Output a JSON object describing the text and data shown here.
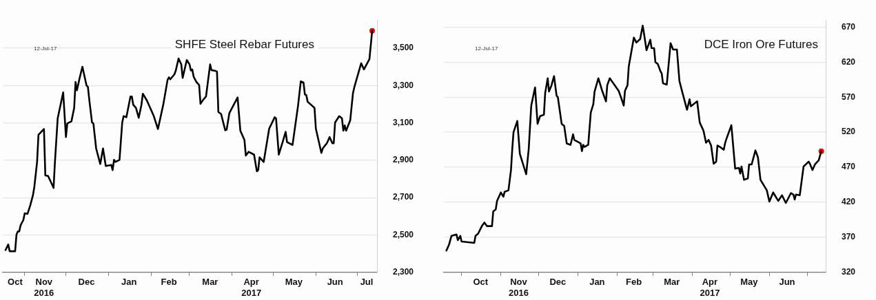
{
  "chart_data": [
    {
      "type": "line",
      "title": "SHFE Steel Rebar Futures",
      "annotations": [
        "12-Jul-17"
      ],
      "grid": "y",
      "marker": "none",
      "line_style": "solid",
      "xlim": [
        "2016-10-16",
        "2017-07-16"
      ],
      "xticks": [
        {
          "value": "2016-10-25",
          "label": "Oct"
        },
        {
          "value": "2016-11-01",
          "label": null
        },
        {
          "value": "2016-11-15",
          "label": "Nov\n2016"
        },
        {
          "value": "2016-12-01",
          "label": null
        },
        {
          "value": "2016-12-16",
          "label": "Dec"
        },
        {
          "value": "2017-01-01",
          "label": null
        },
        {
          "value": "2017-01-16",
          "label": "Jan"
        },
        {
          "value": "2017-02-01",
          "label": null
        },
        {
          "value": "2017-02-14",
          "label": "Feb"
        },
        {
          "value": "2017-03-01",
          "label": null
        },
        {
          "value": "2017-03-16",
          "label": "Mar"
        },
        {
          "value": "2017-04-01",
          "label": null
        },
        {
          "value": "2017-04-15",
          "label": "Apr\n2017"
        },
        {
          "value": "2017-05-01",
          "label": null
        },
        {
          "value": "2017-05-16",
          "label": "May"
        },
        {
          "value": "2017-06-01",
          "label": null
        },
        {
          "value": "2017-06-15",
          "label": "Jun"
        },
        {
          "value": "2017-07-01",
          "label": null
        },
        {
          "value": "2017-07-08",
          "label": "Jul"
        }
      ],
      "ylim": [
        2300,
        3650
      ],
      "yticks": [
        {
          "value": 2300,
          "label": "2,300"
        },
        {
          "value": 2500,
          "label": "2,500"
        },
        {
          "value": 2700,
          "label": "2,700"
        },
        {
          "value": 2900,
          "label": "2,900"
        },
        {
          "value": 3100,
          "label": "3,100"
        },
        {
          "value": 3300,
          "label": "3,300"
        },
        {
          "value": 3500,
          "label": "3,500"
        }
      ],
      "series": [
        {
          "color": "#000000",
          "x": [
            "2016-10-18",
            "2016-10-20",
            "2016-10-21",
            "2016-10-25",
            "2016-10-26",
            "2016-10-27",
            "2016-10-28",
            "2016-10-29",
            "2016-10-31",
            "2016-11-01",
            "2016-11-03",
            "2016-11-05",
            "2016-11-07",
            "2016-11-08",
            "2016-11-10",
            "2016-11-11",
            "2016-11-15",
            "2016-11-16",
            "2016-11-18",
            "2016-11-22",
            "2016-11-23",
            "2016-11-25",
            "2016-11-29",
            "2016-12-01",
            "2016-12-02",
            "2016-12-05",
            "2016-12-07",
            "2016-12-08",
            "2016-12-09",
            "2016-12-11",
            "2016-12-13",
            "2016-12-16",
            "2016-12-17",
            "2016-12-18",
            "2016-12-20",
            "2016-12-21",
            "2016-12-23",
            "2016-12-26",
            "2016-12-28",
            "2016-12-30",
            "2017-01-03",
            "2017-01-04",
            "2017-01-05",
            "2017-01-06",
            "2017-01-09",
            "2017-01-11",
            "2017-01-12",
            "2017-01-14",
            "2017-01-17",
            "2017-01-18",
            "2017-01-19",
            "2017-01-21",
            "2017-01-23",
            "2017-01-25",
            "2017-01-26",
            "2017-01-29",
            "2017-02-03",
            "2017-02-06",
            "2017-02-10",
            "2017-02-13",
            "2017-02-14",
            "2017-02-15",
            "2017-02-18",
            "2017-02-19",
            "2017-02-21",
            "2017-02-23",
            "2017-02-24",
            "2017-02-27",
            "2017-03-01",
            "2017-03-02",
            "2017-03-03",
            "2017-03-04",
            "2017-03-05",
            "2017-03-06",
            "2017-03-08",
            "2017-03-09",
            "2017-03-11",
            "2017-03-13",
            "2017-03-16",
            "2017-03-17",
            "2017-03-20",
            "2017-03-21",
            "2017-03-22",
            "2017-03-24",
            "2017-03-27",
            "2017-03-28",
            "2017-03-30",
            "2017-04-05",
            "2017-04-07",
            "2017-04-10",
            "2017-04-11",
            "2017-04-13",
            "2017-04-17",
            "2017-04-19",
            "2017-04-20",
            "2017-04-21",
            "2017-04-24",
            "2017-04-26",
            "2017-04-28",
            "2017-05-02",
            "2017-05-03",
            "2017-05-05",
            "2017-05-08",
            "2017-05-10",
            "2017-05-11",
            "2017-05-15",
            "2017-05-19",
            "2017-05-21",
            "2017-05-23",
            "2017-05-24",
            "2017-05-25",
            "2017-05-26",
            "2017-05-31",
            "2017-06-01",
            "2017-06-05",
            "2017-06-06",
            "2017-06-09",
            "2017-06-11",
            "2017-06-13",
            "2017-06-14",
            "2017-06-15",
            "2017-06-18",
            "2017-06-20",
            "2017-06-21",
            "2017-06-22",
            "2017-06-23",
            "2017-06-26",
            "2017-06-28",
            "2017-06-29",
            "2017-07-04",
            "2017-07-06",
            "2017-07-10",
            "2017-07-12"
          ],
          "values": [
            2419,
            2449,
            2413,
            2413,
            2502,
            2519,
            2519,
            2552,
            2580,
            2616,
            2613,
            2658,
            2713,
            2758,
            2891,
            3036,
            3067,
            2819,
            2816,
            2752,
            2891,
            3124,
            3263,
            3024,
            3097,
            3108,
            3180,
            3319,
            3274,
            3341,
            3400,
            3300,
            3293,
            3224,
            3102,
            3097,
            2963,
            2880,
            2963,
            2869,
            2875,
            2847,
            2902,
            2891,
            2902,
            3102,
            3136,
            3130,
            3241,
            3241,
            3197,
            3180,
            3127,
            3197,
            3256,
            3219,
            3136,
            3067,
            3202,
            3330,
            3344,
            3333,
            3360,
            3380,
            3444,
            3413,
            3341,
            3436,
            3413,
            3380,
            3386,
            3347,
            3333,
            3319,
            3302,
            3202,
            3224,
            3241,
            3413,
            3382,
            3378,
            3374,
            3158,
            3147,
            3060,
            3063,
            3152,
            3236,
            3058,
            3008,
            2925,
            2945,
            2930,
            2841,
            2847,
            2916,
            2891,
            2980,
            3069,
            3130,
            3124,
            2930,
            3002,
            3052,
            2997,
            2982,
            3191,
            3322,
            3316,
            3252,
            3249,
            3213,
            3180,
            3069,
            2939,
            2963,
            2991,
            3024,
            2991,
            2991,
            3102,
            3136,
            3124,
            3058,
            3086,
            3058,
            3113,
            3258,
            3291,
            3419,
            3386,
            3441,
            3593
          ]
        },
        {
          "type": "scatter",
          "marker": "circle",
          "color": "#ff0000",
          "x": [
            "2017-07-12"
          ],
          "values": [
            3593
          ]
        }
      ]
    },
    {
      "type": "line",
      "title": "DCE Iron Ore Futures",
      "annotations": [
        "12-Jul-17"
      ],
      "grid": "y",
      "marker": "none",
      "line_style": "solid",
      "xlim": [
        "2016-09-17",
        "2017-07-16"
      ],
      "xticks": [
        {
          "value": "2016-10-01",
          "label": null
        },
        {
          "value": "2016-10-16",
          "label": "Oct"
        },
        {
          "value": "2016-11-01",
          "label": null
        },
        {
          "value": "2016-11-15",
          "label": "Nov\n2016"
        },
        {
          "value": "2016-12-01",
          "label": null
        },
        {
          "value": "2016-12-16",
          "label": "Dec"
        },
        {
          "value": "2017-01-01",
          "label": null
        },
        {
          "value": "2017-01-16",
          "label": "Jan"
        },
        {
          "value": "2017-02-01",
          "label": null
        },
        {
          "value": "2017-02-14",
          "label": "Feb"
        },
        {
          "value": "2017-03-01",
          "label": null
        },
        {
          "value": "2017-03-16",
          "label": "Mar"
        },
        {
          "value": "2017-04-01",
          "label": null
        },
        {
          "value": "2017-04-15",
          "label": "Apr\n2017"
        },
        {
          "value": "2017-05-01",
          "label": null
        },
        {
          "value": "2017-05-16",
          "label": "May"
        },
        {
          "value": "2017-06-01",
          "label": null
        },
        {
          "value": "2017-06-15",
          "label": "Jun"
        },
        {
          "value": "2017-07-01",
          "label": null
        }
      ],
      "ylim": [
        320,
        680
      ],
      "yticks": [
        320,
        370,
        420,
        470,
        520,
        570,
        620,
        670
      ],
      "series": [
        {
          "color": "#000000",
          "x": [
            "2016-09-19",
            "2016-09-21",
            "2016-09-23",
            "2016-09-27",
            "2016-09-28",
            "2016-09-30",
            "2016-10-01",
            "2016-10-11",
            "2016-10-12",
            "2016-10-14",
            "2016-10-17",
            "2016-10-19",
            "2016-10-21",
            "2016-10-25",
            "2016-10-26",
            "2016-10-28",
            "2016-10-29",
            "2016-11-01",
            "2016-11-03",
            "2016-11-04",
            "2016-11-07",
            "2016-11-09",
            "2016-11-10",
            "2016-11-11",
            "2016-11-14",
            "2016-11-16",
            "2016-11-21",
            "2016-11-23",
            "2016-11-25",
            "2016-11-28",
            "2016-11-30",
            "2016-12-02",
            "2016-12-05",
            "2016-12-06",
            "2016-12-08",
            "2016-12-09",
            "2016-12-11",
            "2016-12-13",
            "2016-12-15",
            "2016-12-16",
            "2016-12-19",
            "2016-12-21",
            "2016-12-23",
            "2016-12-26",
            "2016-12-28",
            "2016-12-29",
            "2017-01-03",
            "2017-01-04",
            "2017-01-05",
            "2017-01-06",
            "2017-01-09",
            "2017-01-11",
            "2017-01-13",
            "2017-01-14",
            "2017-01-17",
            "2017-01-20",
            "2017-01-23",
            "2017-01-24",
            "2017-01-26",
            "2017-02-02",
            "2017-02-04",
            "2017-02-06",
            "2017-02-07",
            "2017-02-09",
            "2017-02-10",
            "2017-02-14",
            "2017-02-16",
            "2017-02-19",
            "2017-02-21",
            "2017-02-22",
            "2017-02-24",
            "2017-02-27",
            "2017-02-28",
            "2017-03-02",
            "2017-03-03",
            "2017-03-05",
            "2017-03-07",
            "2017-03-08",
            "2017-03-09",
            "2017-03-10",
            "2017-03-12",
            "2017-03-15",
            "2017-03-17",
            "2017-03-20",
            "2017-03-22",
            "2017-03-24",
            "2017-03-28",
            "2017-03-30",
            "2017-03-31",
            "2017-04-05",
            "2017-04-07",
            "2017-04-10",
            "2017-04-12",
            "2017-04-14",
            "2017-04-16",
            "2017-04-18",
            "2017-04-20",
            "2017-04-21",
            "2017-04-23",
            "2017-04-26",
            "2017-04-27",
            "2017-04-28",
            "2017-05-02",
            "2017-05-05",
            "2017-05-08",
            "2017-05-09",
            "2017-05-10",
            "2017-05-12",
            "2017-05-15",
            "2017-05-16",
            "2017-05-18",
            "2017-05-21",
            "2017-05-23",
            "2017-05-25",
            "2017-05-30",
            "2017-06-01",
            "2017-06-04",
            "2017-06-08",
            "2017-06-11",
            "2017-06-14",
            "2017-06-18",
            "2017-06-20",
            "2017-06-21",
            "2017-06-22",
            "2017-06-25",
            "2017-06-28",
            "2017-07-02",
            "2017-07-03",
            "2017-07-05",
            "2017-07-07",
            "2017-07-10",
            "2017-07-12"
          ],
          "values": [
            351,
            359,
            372,
            374,
            366,
            372,
            364,
            362,
            372,
            375,
            386,
            391,
            386,
            386,
            407,
            410,
            422,
            434,
            428,
            435,
            437,
            466,
            496,
            520,
            536,
            489,
            460,
            496,
            558,
            584,
            532,
            543,
            545,
            576,
            597,
            578,
            587,
            600,
            572,
            570,
            532,
            529,
            504,
            502,
            517,
            509,
            504,
            493,
            502,
            499,
            502,
            548,
            560,
            578,
            597,
            579,
            564,
            587,
            597,
            579,
            569,
            558,
            579,
            587,
            614,
            655,
            648,
            653,
            672,
            661,
            637,
            652,
            640,
            640,
            620,
            617,
            607,
            604,
            590,
            589,
            588,
            647,
            638,
            638,
            593,
            579,
            552,
            567,
            557,
            564,
            534,
            522,
            505,
            509,
            501,
            475,
            478,
            501,
            499,
            495,
            504,
            510,
            530,
            468,
            469,
            461,
            471,
            452,
            454,
            474,
            474,
            494,
            484,
            452,
            437,
            421,
            434,
            422,
            430,
            419,
            433,
            431,
            424,
            431,
            430,
            471,
            478,
            475,
            466,
            474,
            480,
            493
          ]
        },
        {
          "type": "scatter",
          "marker": "circle",
          "color": "#ff0000",
          "x": [
            "2017-07-12"
          ],
          "values": [
            493
          ]
        }
      ]
    }
  ]
}
